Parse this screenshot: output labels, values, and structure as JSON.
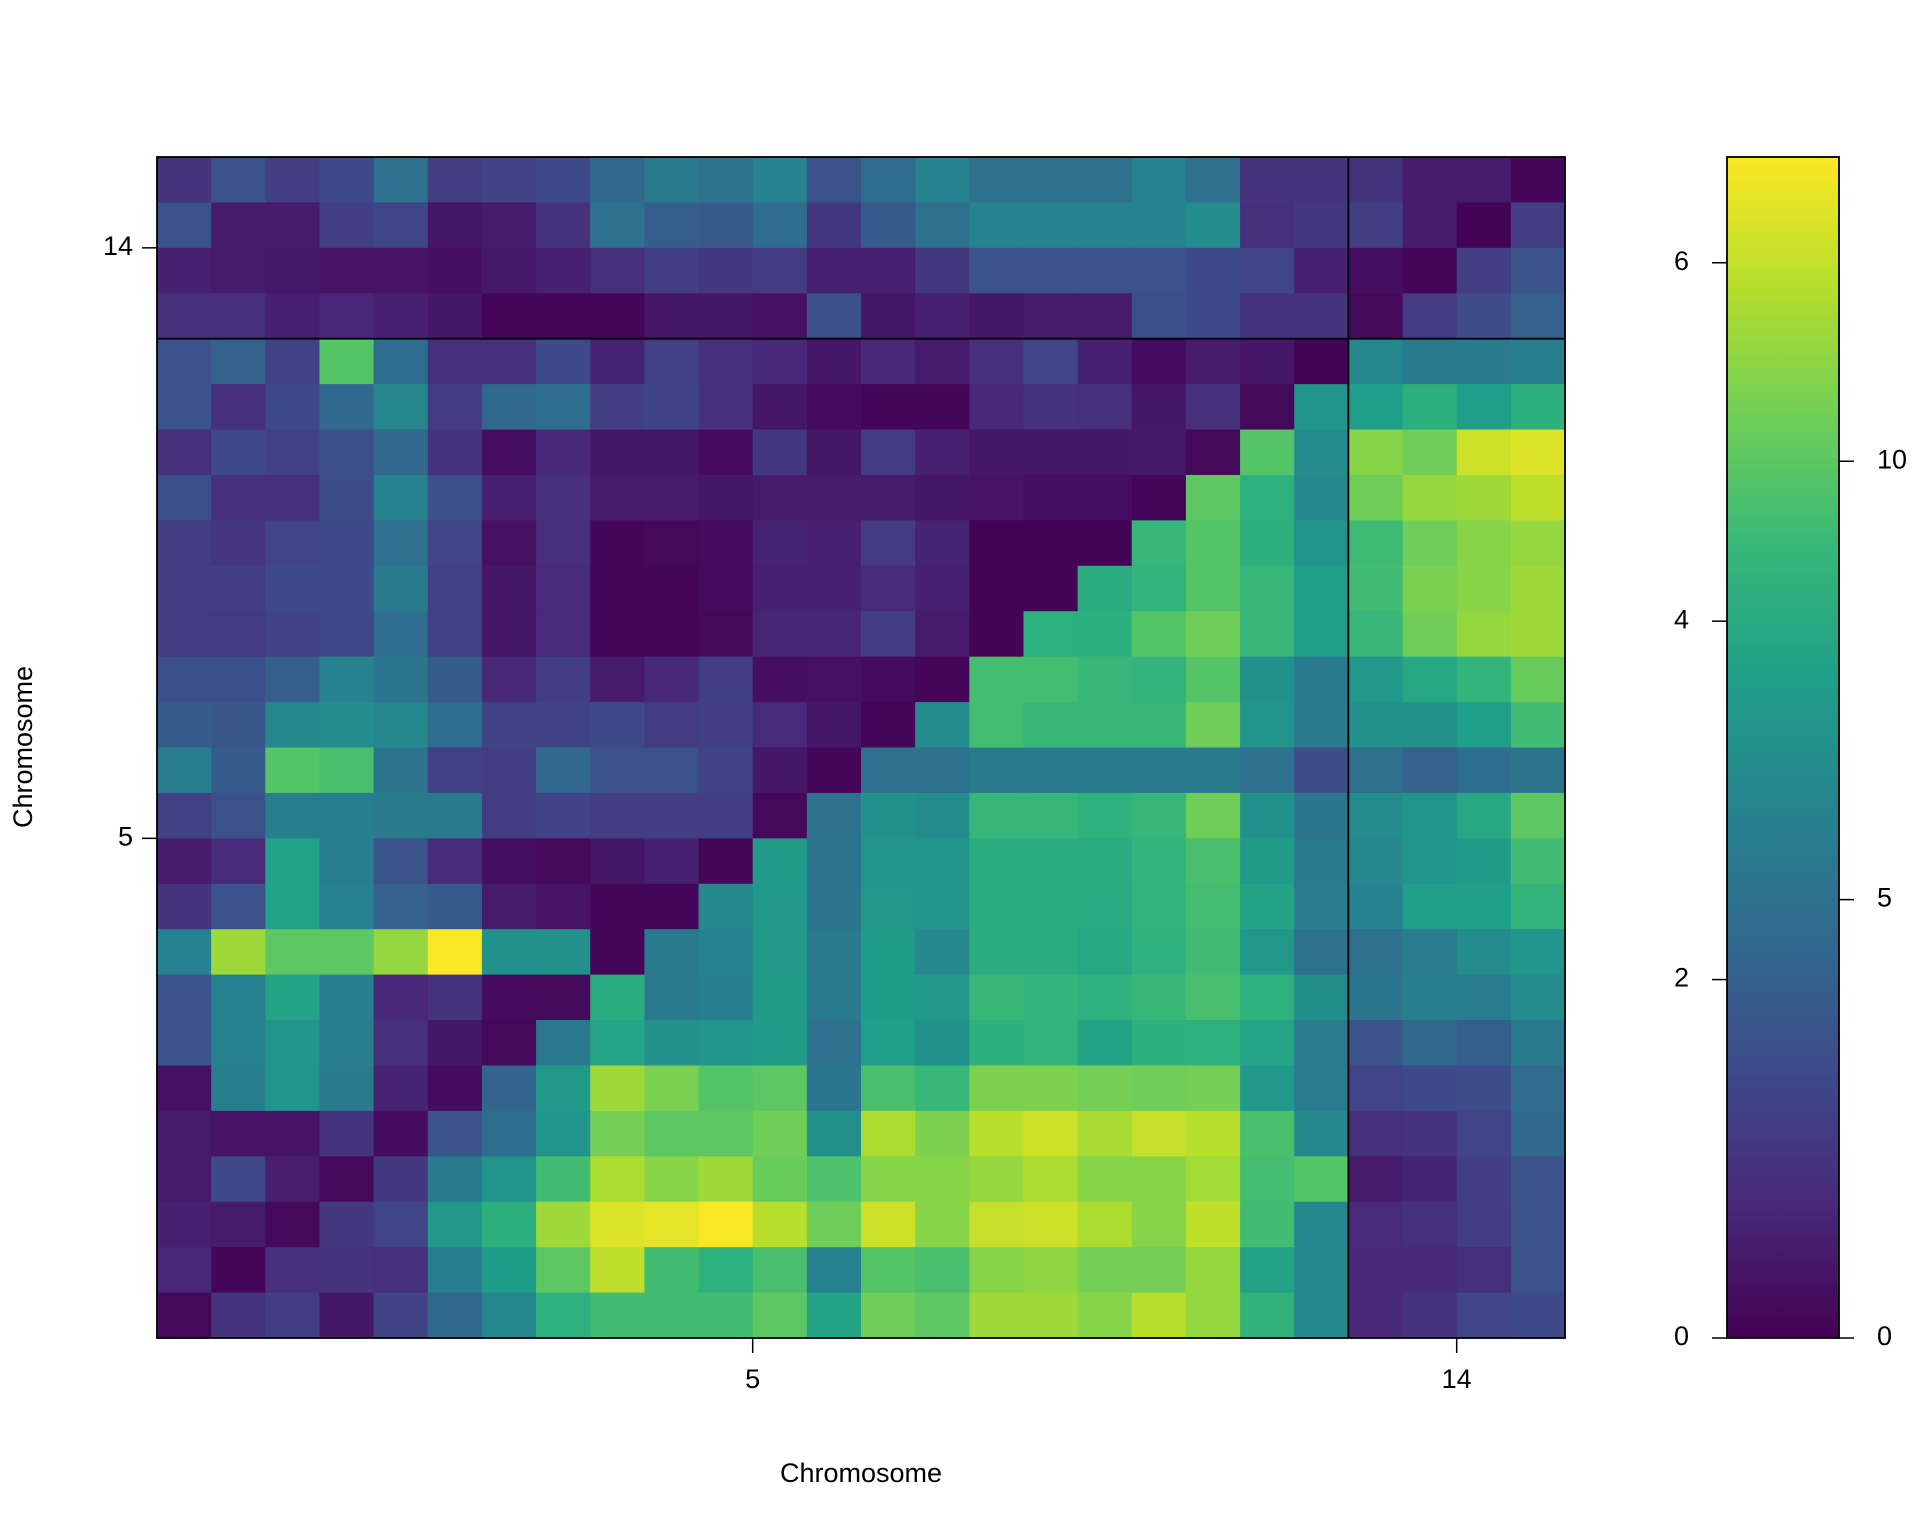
{
  "chart_data": {
    "type": "heatmap",
    "x_label": "Chromosome",
    "y_label": "Chromosome",
    "chromosomes": [
      {
        "name": "5",
        "markers": 22
      },
      {
        "name": "14",
        "markers": 4
      }
    ],
    "z": [
      [
        2,
        3.5,
        2.5,
        3,
        5,
        2.5,
        2.7,
        3,
        4.5,
        5.5,
        5.2,
        6,
        3.5,
        4.8,
        6,
        5,
        5,
        5,
        6,
        5,
        2,
        2,
        2,
        1,
        1,
        0.2
      ],
      [
        3.5,
        1,
        1,
        2.5,
        2.8,
        0.8,
        1,
        2,
        5,
        4,
        3.8,
        4.8,
        2.2,
        3.8,
        5,
        6,
        6,
        6,
        6,
        6.5,
        1.8,
        2.2,
        2.5,
        1,
        0.1,
        2.5
      ],
      [
        1.2,
        1,
        0.9,
        0.7,
        0.7,
        0.5,
        0.9,
        1.2,
        1.8,
        2.5,
        2.2,
        2.3,
        1.2,
        1.2,
        2.2,
        3.5,
        3.5,
        3.5,
        3.5,
        3,
        2.8,
        1.2,
        0.5,
        0.2,
        2.5,
        3.5
      ],
      [
        1.8,
        1.8,
        1.2,
        1.5,
        1.2,
        0.8,
        0.2,
        0.2,
        0.2,
        0.8,
        0.8,
        0.6,
        3.3,
        0.8,
        1.2,
        0.8,
        1,
        1,
        3.3,
        3,
        2,
        2,
        0.3,
        2.3,
        3.2,
        4.2
      ],
      [
        3.5,
        4.2,
        2.7,
        9.8,
        4.8,
        1.8,
        1.8,
        3,
        1.3,
        2.6,
        1.8,
        1.5,
        0.8,
        1.5,
        1,
        1.8,
        2.8,
        1.2,
        0.4,
        1,
        0.8,
        0.1,
        6.2,
        5.5,
        5.5,
        5.8
      ],
      [
        3.5,
        1.8,
        3,
        4.5,
        6.2,
        2.3,
        4.5,
        4.8,
        2.5,
        2.7,
        1.8,
        0.8,
        0.4,
        0.2,
        0.2,
        1.5,
        2,
        1.8,
        0.8,
        1.8,
        0.3,
        7,
        7.5,
        8.5,
        7.5,
        8.5
      ],
      [
        1.8,
        3,
        2.6,
        3.3,
        4.5,
        2,
        0.5,
        1.5,
        0.8,
        0.8,
        0.4,
        2.2,
        0.8,
        2.4,
        1.2,
        0.8,
        0.8,
        0.8,
        0.9,
        0.3,
        9.8,
        6.5,
        11,
        10.5,
        12.5,
        12.8
      ],
      [
        3.3,
        1.8,
        1.8,
        3.2,
        6,
        3.3,
        1.2,
        1.8,
        1,
        1,
        0.8,
        1,
        1,
        1,
        0.8,
        0.7,
        0.5,
        0.5,
        0.2,
        10,
        8.6,
        6.3,
        10.5,
        11.3,
        11.5,
        12.2
      ],
      [
        2.4,
        2.1,
        2.8,
        3,
        5,
        2.8,
        0.6,
        1.8,
        0.2,
        0.3,
        0.4,
        1.3,
        1.2,
        2.3,
        1.3,
        0.1,
        0.1,
        0.1,
        9,
        9.8,
        8.5,
        7,
        9.2,
        10.5,
        11,
        11.3
      ],
      [
        2.4,
        2.5,
        3,
        3,
        5.5,
        2.6,
        0.8,
        1.6,
        0.2,
        0.2,
        0.4,
        1.2,
        1.2,
        1.6,
        1.2,
        0.1,
        0.1,
        8.3,
        8.8,
        9.8,
        9,
        7.5,
        9.3,
        10.7,
        11,
        11.5
      ],
      [
        2.4,
        2.3,
        2.7,
        2.9,
        4.8,
        2.6,
        0.8,
        1.6,
        0.2,
        0.2,
        0.3,
        1.4,
        1.4,
        2.5,
        1,
        0.1,
        8.6,
        8.5,
        9.8,
        10.5,
        9,
        7.5,
        9,
        10.5,
        11.3,
        11.5
      ],
      [
        3.3,
        3.3,
        4,
        6,
        5.3,
        3.8,
        1.5,
        2.5,
        1,
        1.5,
        2.5,
        0.5,
        0.6,
        0.4,
        0.2,
        9.4,
        9.4,
        9,
        8.8,
        9.8,
        6.8,
        5.5,
        7.2,
        8,
        8.8,
        10.3
      ],
      [
        3.8,
        3.6,
        6.3,
        6.5,
        6.2,
        4.8,
        2.7,
        2.7,
        3,
        2.3,
        2.5,
        1.6,
        0.8,
        0.2,
        6.5,
        9.4,
        9,
        9,
        9,
        10.5,
        7,
        5.5,
        6.8,
        6.8,
        7.5,
        9.3
      ],
      [
        5.7,
        3.8,
        9.8,
        9.5,
        5.2,
        2.6,
        2.4,
        4.5,
        3.4,
        3.4,
        2.7,
        0.8,
        0.2,
        5,
        5,
        5.5,
        5.5,
        5.5,
        5.5,
        5.5,
        5,
        3.2,
        5,
        4.2,
        4.8,
        5.2
      ],
      [
        2.6,
        3.4,
        5.8,
        5.8,
        5.5,
        5.5,
        2.4,
        2.7,
        2.5,
        2.5,
        2.5,
        0.3,
        5,
        6.8,
        6.5,
        9,
        9,
        8.6,
        9,
        10.5,
        6.8,
        5.3,
        6.5,
        7,
        8,
        10
      ],
      [
        1,
        1.6,
        7.7,
        5.7,
        3.5,
        1.6,
        0.5,
        0.3,
        0.8,
        1.2,
        0.2,
        7.3,
        5.2,
        7,
        7,
        8.3,
        8.3,
        8.3,
        8.8,
        9.5,
        7.3,
        5.5,
        6.3,
        7,
        7.3,
        9.3
      ],
      [
        2,
        3.5,
        7.7,
        6,
        4.2,
        3.8,
        1,
        0.7,
        0.2,
        0.2,
        6.3,
        7.2,
        5.2,
        7.1,
        7,
        8.3,
        8.3,
        8.2,
        8.8,
        9.4,
        7.8,
        5.6,
        6,
        7.5,
        7.5,
        8.8
      ],
      [
        6,
        11.5,
        10,
        10,
        11.3,
        13.4,
        6.8,
        6.8,
        0.2,
        5.5,
        6,
        7.2,
        5.5,
        7.4,
        6.3,
        8.3,
        8.3,
        8,
        8.6,
        9.3,
        7.1,
        5,
        5,
        5.6,
        6.5,
        7
      ],
      [
        3.5,
        6,
        7.8,
        5.8,
        1.5,
        2,
        0.4,
        0.3,
        8.3,
        5.5,
        5.8,
        7.3,
        5.5,
        7.4,
        7.2,
        9,
        8.8,
        8.6,
        9,
        9.5,
        8.6,
        6.6,
        5.3,
        5.8,
        5.6,
        6.5
      ],
      [
        3.5,
        6,
        7,
        5.7,
        1.8,
        0.8,
        0.3,
        5.4,
        7.9,
        6.8,
        7,
        7.3,
        5,
        7.5,
        6.8,
        8.5,
        8.8,
        7.8,
        8.5,
        8.6,
        7.9,
        5.6,
        3.5,
        4.5,
        4,
        5.5
      ],
      [
        0.6,
        5.8,
        7,
        5.5,
        1.3,
        0.4,
        4.3,
        7.2,
        11.5,
        10.7,
        9.8,
        10,
        5.3,
        9.5,
        9,
        10.8,
        10.8,
        10.6,
        10.5,
        10.6,
        7.2,
        5.6,
        2.8,
        3,
        3.2,
        4.7
      ],
      [
        1,
        0.7,
        0.7,
        2,
        0.4,
        3.5,
        4.8,
        7,
        10.6,
        10,
        10,
        10.5,
        6.8,
        11.8,
        10.8,
        12,
        12.5,
        11.7,
        12.3,
        12,
        9.5,
        6.3,
        1.8,
        2,
        2.8,
        4.5
      ],
      [
        1,
        3,
        1.1,
        0.3,
        2.2,
        5.5,
        7,
        9.3,
        11.8,
        11,
        11.5,
        10.3,
        9.6,
        11,
        11,
        11.3,
        11.8,
        11,
        11,
        11.6,
        9.4,
        9.8,
        1,
        1.3,
        2.5,
        3.5
      ],
      [
        1.2,
        1,
        0.3,
        2.2,
        2.8,
        7.2,
        8.5,
        11.5,
        12.8,
        13,
        13.4,
        12,
        10.5,
        12.5,
        11,
        12.3,
        12.5,
        11.8,
        11,
        12.2,
        9.3,
        6.2,
        1.6,
        1.8,
        2.4,
        3.5
      ],
      [
        1.5,
        0.2,
        1.8,
        2,
        1.8,
        5.8,
        7.4,
        10,
        12.2,
        9.3,
        8.6,
        9.5,
        6,
        9.8,
        9.5,
        11,
        11.2,
        10.6,
        10.6,
        11.3,
        7.8,
        6.3,
        1.5,
        1.5,
        1.8,
        3.5
      ],
      [
        0.3,
        2,
        2.5,
        0.8,
        2.7,
        4.5,
        6.2,
        8.6,
        9.3,
        9.3,
        9.3,
        10,
        7.8,
        10.5,
        10,
        11.5,
        11.5,
        11,
        12,
        11.3,
        8.7,
        6.3,
        1.5,
        2,
        2.8,
        3
      ]
    ],
    "zlim": [
      0,
      13.47
    ],
    "colorbar_ticks_right": [
      0,
      5,
      10
    ],
    "colorbar_left_lim": [
      0,
      6.59
    ],
    "colorbar_ticks_left": [
      0,
      2,
      4,
      6
    ],
    "colormap": [
      "#440154",
      "#482878",
      "#3e4989",
      "#31688e",
      "#26828e",
      "#1f9e89",
      "#35b779",
      "#6ece58",
      "#b5de2b",
      "#fde725"
    ]
  }
}
